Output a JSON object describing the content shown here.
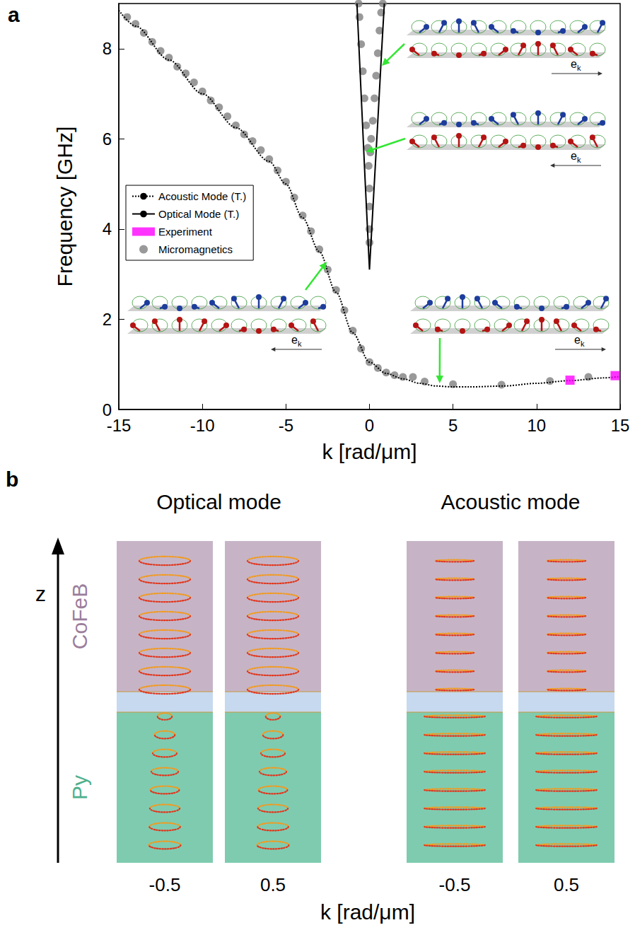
{
  "chart_data": {
    "type": "line",
    "panel_label": "a",
    "x_label": "k [rad/μm]",
    "y_label": "Frequency [GHz]",
    "xlim": [
      -15,
      15
    ],
    "xticks": [
      -15,
      -10,
      -5,
      0,
      5,
      10,
      15
    ],
    "ylim": [
      0,
      9
    ],
    "yticks": [
      0,
      2,
      4,
      6,
      8
    ],
    "grid": false,
    "legend": "upper left",
    "series": [
      {
        "name": "Acoustic Mode (T.)",
        "type": "line",
        "line_style": "dotted",
        "color": "#000000",
        "x": [
          -15,
          -14,
          -12,
          -10,
          -8,
          -6,
          -5,
          -4,
          -3,
          -2,
          -1,
          0,
          1,
          2,
          3,
          4,
          5,
          6,
          8,
          10,
          12,
          14,
          15
        ],
        "values": [
          8.85,
          8.5,
          7.75,
          7.0,
          6.25,
          5.5,
          5.0,
          4.25,
          3.5,
          2.6,
          1.7,
          1.05,
          0.8,
          0.68,
          0.58,
          0.52,
          0.5,
          0.5,
          0.52,
          0.58,
          0.64,
          0.7,
          0.73
        ]
      },
      {
        "name": "Optical Mode (T.)",
        "type": "line",
        "line_style": "solid",
        "color": "#000000",
        "x": [
          -0.75,
          -0.5,
          -0.25,
          0,
          0.25,
          0.5,
          0.75,
          0.89
        ],
        "values": [
          9.0,
          7.0,
          5.0,
          3.1,
          4.75,
          6.4,
          8.1,
          9.0
        ]
      },
      {
        "name": "Experiment",
        "type": "scatter",
        "marker": "square",
        "color": "#ff00ff",
        "x": [
          12,
          14.7
        ],
        "values": [
          0.65,
          0.75
        ]
      },
      {
        "name": "Micromagnetics",
        "type": "scatter",
        "marker": "circle",
        "color": "#808080",
        "x": [
          -14.5,
          -14,
          -13.5,
          -13,
          -12.5,
          -12,
          -11.5,
          -11,
          -10.5,
          -10,
          -9.5,
          -9,
          -8.5,
          -8,
          -7.5,
          -7,
          -6.5,
          -6,
          -5.5,
          -5,
          -4.5,
          -4,
          -3.5,
          -3,
          -2.5,
          -2,
          -1.5,
          -1,
          -0.5,
          0,
          0.5,
          1,
          1.5,
          2,
          2.6,
          3.3,
          5.0,
          7.9,
          10.8,
          13.1,
          0,
          0,
          0,
          0,
          -0.05,
          -0.1,
          -0.2,
          -0.3,
          -0.4,
          -0.5,
          -0.6,
          -0.65,
          0.05,
          0.1,
          0.2,
          0.3,
          0.4,
          0.5,
          0.6,
          0.7,
          0.8
        ],
        "values": [
          8.7,
          8.55,
          8.35,
          8.15,
          7.95,
          7.8,
          7.6,
          7.45,
          7.25,
          7.05,
          6.85,
          6.7,
          6.5,
          6.3,
          6.1,
          5.95,
          5.75,
          5.55,
          5.3,
          5.05,
          4.7,
          4.3,
          3.95,
          3.55,
          3.1,
          2.65,
          2.2,
          1.75,
          1.35,
          1.05,
          0.92,
          0.82,
          0.76,
          0.72,
          0.72,
          0.62,
          0.56,
          0.55,
          0.63,
          0.72,
          3.7,
          4.0,
          4.5,
          4.9,
          5.4,
          5.8,
          6.3,
          6.9,
          7.5,
          8.1,
          8.7,
          9.0,
          5.7,
          6.0,
          6.4,
          6.9,
          7.4,
          7.9,
          8.4,
          8.8,
          9.0
        ]
      }
    ],
    "annotations": [
      {
        "text": "e",
        "subscript": "k",
        "direction": "right",
        "points_to": [
          0.68,
          7.6
        ]
      },
      {
        "text": "e",
        "subscript": "k",
        "direction": "left",
        "points_to": [
          -0.3,
          5.7
        ]
      },
      {
        "text": "e",
        "subscript": "k",
        "direction": "left",
        "points_to": [
          -2.5,
          3.3
        ]
      },
      {
        "text": "e",
        "subscript": "k",
        "direction": "right",
        "points_to": [
          4.2,
          0.55
        ]
      }
    ]
  },
  "panel_b": {
    "panel_label": "b",
    "z_label": "z",
    "x_label": "k [rad/μm]",
    "layers": [
      "CoFeB",
      "Py"
    ],
    "modes": [
      {
        "title": "Optical mode",
        "columns": [
          -0.5,
          0.5
        ],
        "CoFeB": {
          "in_plane": [
            0.53,
            0.53,
            0.53,
            0.53,
            0.53,
            0.53,
            0.53,
            0.53
          ],
          "out_of_plane": [
            0.09,
            0.09,
            0.09,
            0.09,
            0.09,
            0.09,
            0.09,
            0.09
          ]
        },
        "Py": {
          "in_plane": [
            0.15,
            0.21,
            0.25,
            0.28,
            0.3,
            0.31,
            0.32,
            0.33
          ],
          "out_of_plane": [
            0.07,
            0.08,
            0.08,
            0.08,
            0.08,
            0.08,
            0.08,
            0.08
          ]
        }
      },
      {
        "title": "Acoustic mode",
        "columns": [
          -0.5,
          0.5
        ],
        "CoFeB": {
          "in_plane": [
            0.4,
            0.4,
            0.4,
            0.4,
            0.4,
            0.4,
            0.4,
            0.4
          ],
          "out_of_plane": [
            0.02,
            0.02,
            0.02,
            0.02,
            0.02,
            0.02,
            0.02,
            0.02
          ]
        },
        "Py": {
          "in_plane": [
            0.63,
            0.63,
            0.63,
            0.63,
            0.63,
            0.63,
            0.63,
            0.63
          ],
          "out_of_plane": [
            0.025,
            0.025,
            0.025,
            0.025,
            0.025,
            0.025,
            0.025,
            0.025
          ]
        }
      }
    ]
  }
}
